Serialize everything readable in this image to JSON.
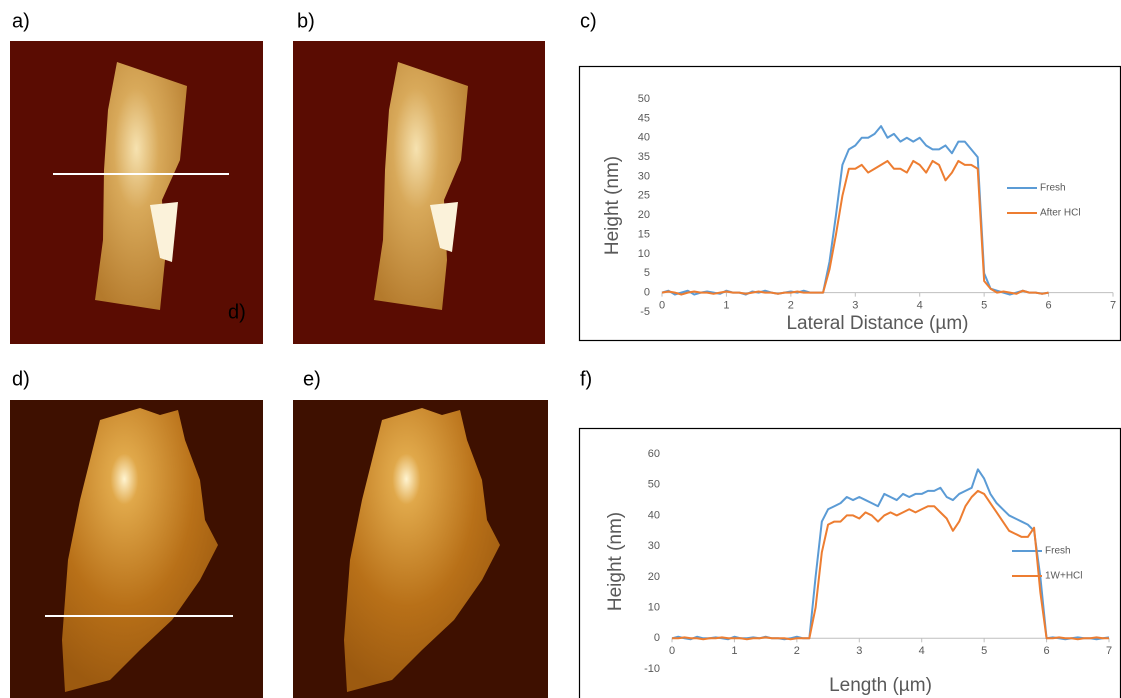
{
  "panel_labels": [
    "a)",
    "b)",
    "c)",
    "d)",
    "e)",
    "f)"
  ],
  "inset_label": "d)",
  "chart_data": [
    {
      "type": "line",
      "y_label": "Height (nm)",
      "x_label": "Lateral Distance (µm)",
      "xlim": [
        0,
        7
      ],
      "xticks": [
        0,
        1,
        2,
        3,
        4,
        5,
        6,
        7
      ],
      "ylim": [
        -5,
        50
      ],
      "yticks": [
        -5,
        0,
        5,
        10,
        15,
        20,
        25,
        30,
        35,
        40,
        45,
        50
      ],
      "legend": "right",
      "grid": false,
      "x": [
        0,
        0.1,
        0.2,
        0.3,
        0.4,
        0.5,
        0.6,
        0.7,
        0.8,
        0.9,
        1,
        1.1,
        1.2,
        1.3,
        1.4,
        1.5,
        1.6,
        1.7,
        1.8,
        1.9,
        2,
        2.1,
        2.2,
        2.3,
        2.4,
        2.5,
        2.6,
        2.7,
        2.8,
        2.9,
        3,
        3.1,
        3.2,
        3.3,
        3.4,
        3.5,
        3.6,
        3.7,
        3.8,
        3.9,
        4,
        4.1,
        4.2,
        4.3,
        4.4,
        4.5,
        4.6,
        4.7,
        4.8,
        4.9,
        5,
        5.1,
        5.2,
        5.3,
        5.4,
        5.5,
        5.6,
        5.7,
        5.8,
        5.9,
        6
      ],
      "series": [
        {
          "name": "Fresh",
          "color": "#5b9bd5",
          "values": [
            0,
            0.5,
            -0.5,
            0,
            0.5,
            -0.5,
            0,
            0.3,
            0,
            -0.3,
            0.5,
            0,
            0,
            -0.5,
            0.3,
            0,
            0.5,
            0,
            -0.3,
            0,
            0.3,
            0,
            0.5,
            0,
            0,
            0,
            8,
            20,
            33,
            37,
            38,
            40,
            40,
            41,
            43,
            40,
            41,
            39,
            40,
            39,
            40,
            38,
            37,
            37,
            38,
            36,
            39,
            39,
            37,
            35,
            5,
            1,
            0.5,
            0,
            -0.5,
            0,
            0.5,
            0,
            0,
            -0.3,
            0
          ]
        },
        {
          "name": "After HCl",
          "color": "#ed7d31",
          "values": [
            0,
            0.3,
            0,
            -0.5,
            0,
            0.3,
            0,
            0,
            -0.3,
            0,
            0.3,
            0,
            0,
            -0.3,
            0,
            0.3,
            0,
            0,
            -0.3,
            0,
            0,
            0.3,
            0,
            0,
            0,
            0,
            6,
            15,
            25,
            32,
            32,
            33,
            31,
            32,
            33,
            34,
            32,
            32,
            31,
            34,
            33,
            31,
            34,
            33,
            29,
            31,
            34,
            33,
            33,
            32,
            3,
            1,
            0,
            0.3,
            0,
            -0.3,
            0.5,
            0,
            0,
            -0.3,
            0
          ]
        }
      ]
    },
    {
      "type": "line",
      "y_label": "Height (nm)",
      "x_label": "Length (µm)",
      "xlim": [
        0,
        7
      ],
      "xticks": [
        0,
        1,
        2,
        3,
        4,
        5,
        6,
        7
      ],
      "ylim": [
        -10,
        60
      ],
      "yticks": [
        -10,
        0,
        10,
        20,
        30,
        40,
        50,
        60
      ],
      "legend": "right",
      "grid": false,
      "x": [
        0,
        0.1,
        0.2,
        0.3,
        0.4,
        0.5,
        0.6,
        0.7,
        0.8,
        0.9,
        1,
        1.1,
        1.2,
        1.3,
        1.4,
        1.5,
        1.6,
        1.7,
        1.8,
        1.9,
        2,
        2.1,
        2.2,
        2.3,
        2.4,
        2.5,
        2.6,
        2.7,
        2.8,
        2.9,
        3,
        3.1,
        3.2,
        3.3,
        3.4,
        3.5,
        3.6,
        3.7,
        3.8,
        3.9,
        4,
        4.1,
        4.2,
        4.3,
        4.4,
        4.5,
        4.6,
        4.7,
        4.8,
        4.9,
        5,
        5.1,
        5.2,
        5.3,
        5.4,
        5.5,
        5.6,
        5.7,
        5.8,
        5.9,
        6,
        6.1,
        6.2,
        6.3,
        6.4,
        6.5,
        6.6,
        6.7,
        6.8,
        6.9,
        7
      ],
      "series": [
        {
          "name": "Fresh",
          "color": "#5b9bd5",
          "values": [
            0,
            0.5,
            0,
            -0.3,
            0.5,
            0,
            0,
            0.3,
            0,
            -0.3,
            0.5,
            0,
            0,
            0.3,
            0,
            0.5,
            0,
            0,
            -0.3,
            0,
            0.5,
            0,
            0,
            20,
            38,
            42,
            43,
            44,
            46,
            45,
            46,
            45,
            44,
            43,
            47,
            46,
            45,
            47,
            46,
            47,
            47,
            48,
            48,
            49,
            46,
            45,
            47,
            48,
            49,
            55,
            52,
            47,
            44,
            42,
            40,
            39,
            38,
            37,
            35,
            20,
            0,
            0.3,
            0,
            -0.3,
            0,
            0.3,
            0,
            0,
            -0.3,
            0,
            0.3
          ]
        },
        {
          "name": "1W+HCl",
          "color": "#ed7d31",
          "values": [
            0,
            0,
            0.3,
            0,
            0,
            -0.3,
            0,
            0,
            0.3,
            0,
            0,
            0,
            -0.3,
            0,
            0,
            0.3,
            0,
            0,
            0,
            -0.3,
            0,
            0,
            0,
            10,
            28,
            37,
            38,
            38,
            40,
            40,
            39,
            41,
            40,
            38,
            40,
            41,
            40,
            41,
            42,
            41,
            42,
            43,
            43,
            41,
            39,
            35,
            38,
            43,
            46,
            48,
            47,
            44,
            41,
            38,
            35,
            34,
            33,
            33,
            36,
            15,
            0,
            0,
            0.3,
            0,
            0,
            -0.3,
            0,
            0,
            0.3,
            0,
            0
          ]
        }
      ]
    }
  ]
}
